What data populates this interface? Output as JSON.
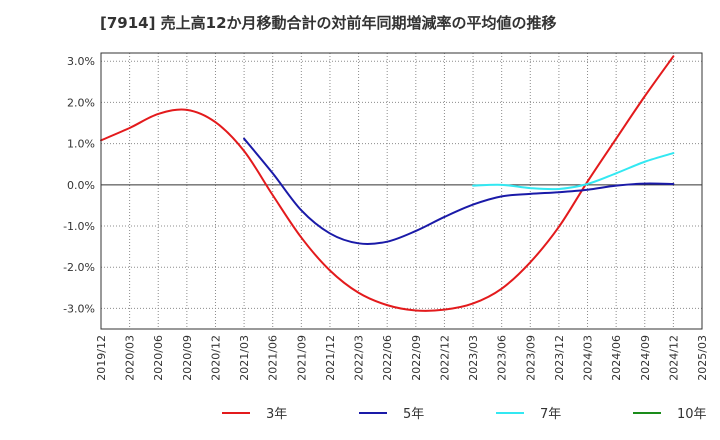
{
  "chart_data": {
    "type": "line",
    "title": "[7914]  売上高12か月移動合計の対前年同期増減率の平均値の推移",
    "xlabel": "",
    "ylabel": "",
    "ylim": [
      -3.5,
      3.2
    ],
    "y_ticks": [
      3.0,
      2.0,
      1.0,
      0.0,
      -1.0,
      -2.0,
      -3.0
    ],
    "y_tick_labels": [
      "3.0%",
      "2.0%",
      "1.0%",
      "0.0%",
      "-1.0%",
      "-2.0%",
      "-3.0%"
    ],
    "x_tick_labels": [
      "2019/12",
      "2020/03",
      "2020/06",
      "2020/09",
      "2020/12",
      "2021/03",
      "2021/06",
      "2021/09",
      "2021/12",
      "2022/03",
      "2022/06",
      "2022/09",
      "2022/12",
      "2023/03",
      "2023/06",
      "2023/09",
      "2023/12",
      "2024/03",
      "2024/06",
      "2024/09",
      "2024/12",
      "2025/03"
    ],
    "grid": true,
    "legend_position": "bottom",
    "series": [
      {
        "name": "3年",
        "color": "#e31a1c",
        "points": [
          [
            "2019/12",
            1.08
          ],
          [
            "2020/03",
            1.38
          ],
          [
            "2020/06",
            1.72
          ],
          [
            "2020/09",
            1.82
          ],
          [
            "2020/12",
            1.52
          ],
          [
            "2021/03",
            0.82
          ],
          [
            "2021/06",
            -0.25
          ],
          [
            "2021/09",
            -1.28
          ],
          [
            "2021/12",
            -2.08
          ],
          [
            "2022/03",
            -2.62
          ],
          [
            "2022/06",
            -2.92
          ],
          [
            "2022/09",
            -3.05
          ],
          [
            "2022/12",
            -3.03
          ],
          [
            "2023/03",
            -2.88
          ],
          [
            "2023/06",
            -2.52
          ],
          [
            "2023/09",
            -1.88
          ],
          [
            "2023/12",
            -1.02
          ],
          [
            "2024/03",
            0.08
          ],
          [
            "2024/06",
            1.12
          ],
          [
            "2024/09",
            2.15
          ],
          [
            "2024/12",
            3.12
          ]
        ]
      },
      {
        "name": "5年",
        "color": "#1a1aa8",
        "points": [
          [
            "2021/03",
            1.12
          ],
          [
            "2021/06",
            0.28
          ],
          [
            "2021/09",
            -0.62
          ],
          [
            "2021/12",
            -1.18
          ],
          [
            "2022/03",
            -1.42
          ],
          [
            "2022/06",
            -1.38
          ],
          [
            "2022/09",
            -1.12
          ],
          [
            "2022/12",
            -0.78
          ],
          [
            "2023/03",
            -0.48
          ],
          [
            "2023/06",
            -0.28
          ],
          [
            "2023/09",
            -0.22
          ],
          [
            "2023/12",
            -0.18
          ],
          [
            "2024/03",
            -0.12
          ],
          [
            "2024/06",
            -0.02
          ],
          [
            "2024/09",
            0.03
          ],
          [
            "2024/12",
            0.02
          ]
        ]
      },
      {
        "name": "7年",
        "color": "#33e8f2",
        "points": [
          [
            "2023/03",
            -0.02
          ],
          [
            "2023/06",
            0.0
          ],
          [
            "2023/09",
            -0.08
          ],
          [
            "2023/12",
            -0.1
          ],
          [
            "2024/03",
            0.02
          ],
          [
            "2024/06",
            0.28
          ],
          [
            "2024/09",
            0.56
          ],
          [
            "2024/12",
            0.77
          ]
        ]
      },
      {
        "name": "10年",
        "color": "#1a8c1a",
        "points": []
      }
    ]
  }
}
